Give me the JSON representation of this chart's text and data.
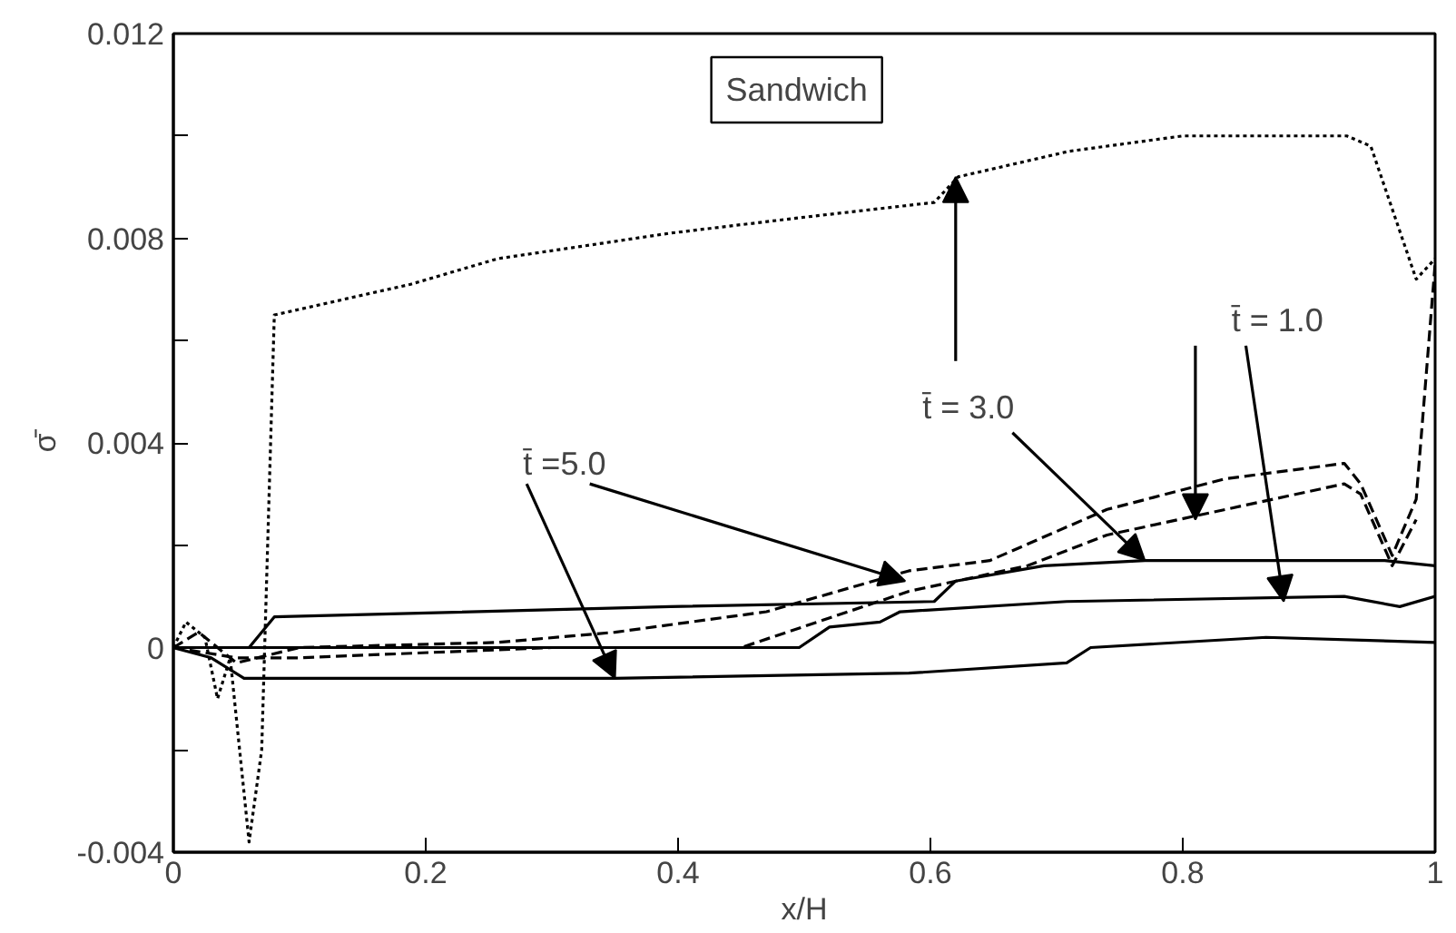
{
  "chart_data": {
    "type": "line",
    "xlabel": "x/H",
    "ylabel": "σ̄",
    "xlim": [
      0,
      1
    ],
    "ylim": [
      -0.004,
      0.012
    ],
    "xticks": [
      0,
      0.2,
      0.4,
      0.6,
      0.8,
      1
    ],
    "yticks": [
      -0.004,
      {
        "value": -0.002,
        "label": null
      },
      0,
      {
        "value": 0.002,
        "label": null
      },
      0.004,
      {
        "value": 0.006,
        "label": null
      },
      0.008,
      {
        "value": 0.01,
        "label": null
      },
      0.012
    ],
    "grid": false,
    "marker": "none",
    "annotations": [
      "Sandwich",
      {
        "text": "t̄ =5.0",
        "x": 0.58,
        "y": 0.0013
      },
      {
        "text": "t̄ = 3.0",
        "x": 0.62,
        "y": 0.0092
      },
      {
        "text": "t̄ = 1.0",
        "x": 0.81,
        "y": 0.0025
      }
    ],
    "series": [
      {
        "color": "#000000",
        "line_style": "dotted",
        "x": [
          0,
          0.01,
          0.025,
          0.035,
          0.045,
          0.06,
          0.07,
          0.08,
          0.188,
          0.257,
          0.394,
          0.496,
          0.603,
          0.622,
          0.71,
          0.8,
          0.93,
          0.949,
          0.985,
          1.0
        ],
        "values": [
          0,
          0.0005,
          0.0002,
          -0.001,
          -0.0002,
          -0.0038,
          -0.002,
          0.0065,
          0.0071,
          0.0076,
          0.0081,
          0.0084,
          0.0087,
          0.0092,
          0.0097,
          0.01,
          0.01,
          0.0098,
          0.0072,
          0.0076
        ]
      },
      {
        "color": "#000000",
        "line_style": "dashed",
        "x": [
          0,
          0.02,
          0.05,
          0.1,
          0.257,
          0.35,
          0.47,
          0.583,
          0.647,
          0.74,
          0.834,
          0.928,
          0.941,
          0.966,
          0.985,
          1.0
        ],
        "values": [
          0,
          0.0003,
          -0.0003,
          0,
          0.0001,
          0.0003,
          0.0007,
          0.0015,
          0.0017,
          0.0027,
          0.0033,
          0.0036,
          0.0032,
          0.0018,
          0.0029,
          0.0075
        ]
      },
      {
        "color": "#000000",
        "line_style": "dashed",
        "x": [
          0,
          0.05,
          0.1,
          0.3,
          0.45,
          0.583,
          0.677,
          0.74,
          0.834,
          0.928,
          0.941,
          0.966,
          0.985
        ],
        "values": [
          0,
          -0.0002,
          -0.0002,
          0,
          0,
          0.0011,
          0.0016,
          0.0022,
          0.0027,
          0.0032,
          0.003,
          0.0016,
          0.0025
        ]
      },
      {
        "color": "#000000",
        "line_style": "solid",
        "x": [
          0,
          0.06,
          0.08,
          0.394,
          0.603,
          0.62,
          0.69,
          0.77,
          0.96,
          1.0
        ],
        "values": [
          0,
          0,
          0.0006,
          0.0008,
          0.0009,
          0.0013,
          0.0016,
          0.0017,
          0.0017,
          0.0016
        ]
      },
      {
        "color": "#000000",
        "line_style": "solid",
        "x": [
          0,
          0.496,
          0.52,
          0.56,
          0.576,
          0.708,
          0.928,
          0.972,
          1.0
        ],
        "values": [
          0,
          0,
          0.0004,
          0.0005,
          0.0007,
          0.0009,
          0.001,
          0.0008,
          0.001
        ]
      },
      {
        "color": "#000000",
        "line_style": "solid",
        "x": [
          0,
          0.03,
          0.056,
          0.35,
          0.583,
          0.708,
          0.727,
          0.866,
          1.0
        ],
        "values": [
          0,
          -0.0002,
          -0.0006,
          -0.0006,
          -0.0005,
          -0.0003,
          0,
          0.0002,
          0.0001
        ]
      }
    ]
  }
}
